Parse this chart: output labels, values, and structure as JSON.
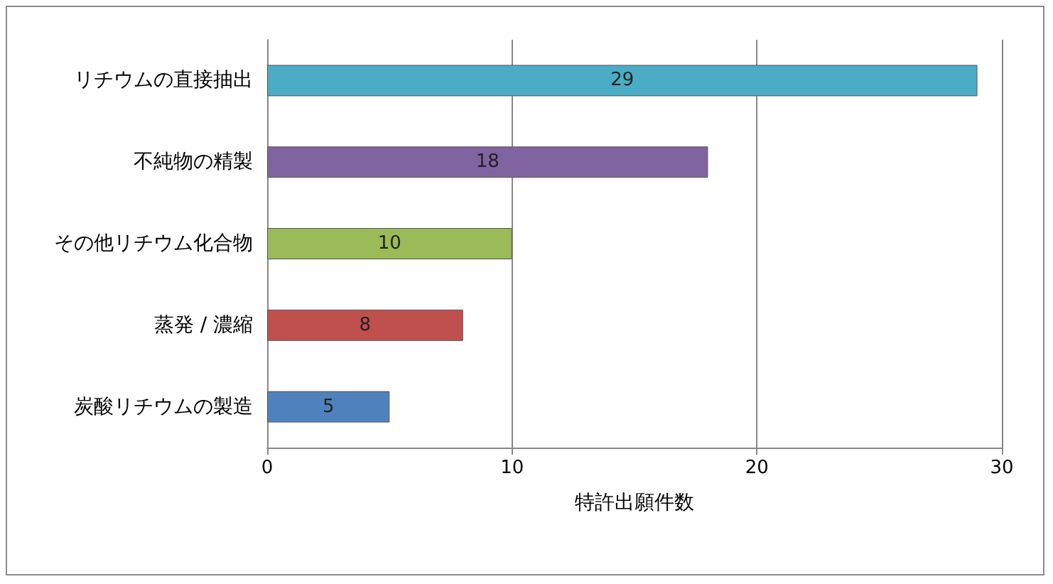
{
  "chart_data": {
    "type": "bar",
    "orientation": "horizontal",
    "xlabel": "特許出願件数",
    "categories": [
      "リチウムの直接抽出",
      "不純物の精製",
      "その他リチウム化合物",
      "蒸発 / 濃縮",
      "炭酸リチウムの製造"
    ],
    "values": [
      29,
      18,
      10,
      8,
      5
    ],
    "colors": [
      "#4bacc6",
      "#8064a2",
      "#9bbb59",
      "#c0504d",
      "#4f81bd"
    ],
    "xlim": [
      0,
      30
    ],
    "xticks": [
      0,
      10,
      20,
      30
    ],
    "grid": "x",
    "data_labels": true
  }
}
